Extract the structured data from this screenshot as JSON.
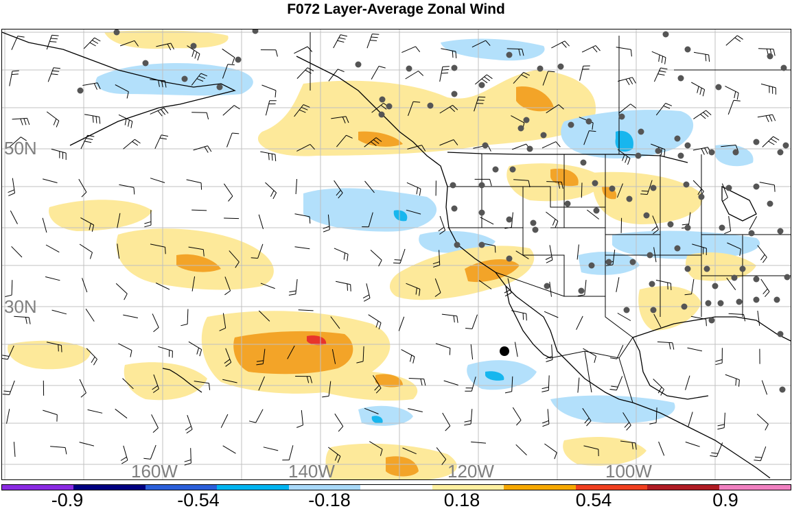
{
  "title": "F072 Layer-Average Zonal Wind",
  "latitude_labels": [
    "50N",
    "30N"
  ],
  "longitude_labels": [
    "160W",
    "140W",
    "120W",
    "100W"
  ],
  "colorbar": {
    "colors": [
      "#8a2be2",
      "#000080",
      "#2b5fd9",
      "#00b4f0",
      "#a8d8f8",
      "#ffffff",
      "#fff0a0",
      "#f5a800",
      "#f04020",
      "#b01c24",
      "#f080c0"
    ],
    "tick_labels": [
      "-0.9",
      "-0.54",
      "-0.18",
      "0.18",
      "0.54",
      "0.9"
    ]
  },
  "styles": {
    "negative_shade": "#b3e0fb",
    "positive_shade": "#fde99a",
    "strong_positive_shade": "#f3a428",
    "strong_negative_shade": "#17b6ee",
    "red_shade": "#e8342b",
    "coastline": "#000000",
    "grid": "#c0c0c0",
    "station": "#555555"
  }
}
